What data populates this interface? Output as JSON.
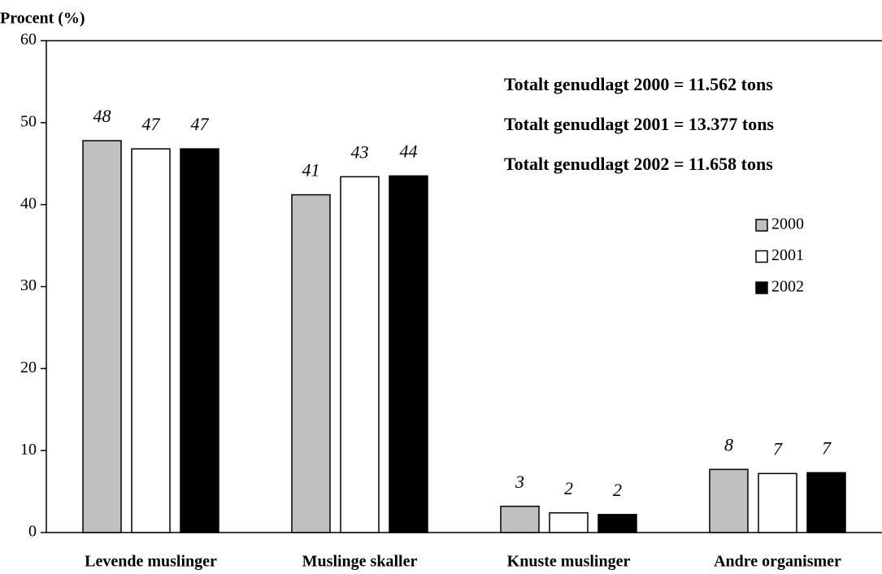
{
  "chart_data": {
    "type": "bar",
    "y_axis_label": "Procent (%)",
    "categories": [
      "Levende muslinger",
      "Muslinge skaller",
      "Knuste muslinger",
      "Andre organismer"
    ],
    "series": [
      {
        "name": "2000",
        "color": "#c0c0c0",
        "values": [
          47.8,
          41.2,
          3.2,
          7.7
        ],
        "value_labels": [
          "48",
          "41",
          "3",
          "8"
        ]
      },
      {
        "name": "2001",
        "color": "#ffffff",
        "values": [
          46.8,
          43.4,
          2.4,
          7.2
        ],
        "value_labels": [
          "47",
          "43",
          "2",
          "7"
        ]
      },
      {
        "name": "2002",
        "color": "#000000",
        "values": [
          46.8,
          43.5,
          2.2,
          7.3
        ],
        "value_labels": [
          "47",
          "44",
          "2",
          "7"
        ]
      }
    ],
    "annotations": [
      "Totalt genudlagt 2000 = 11.562 tons",
      "Totalt genudlagt 2001 = 13.377 tons",
      "Totalt genudlagt 2002 = 11.658 tons"
    ],
    "ylim": [
      0,
      60
    ],
    "yticks": [
      0,
      10,
      20,
      30,
      40,
      50,
      60
    ],
    "grid": false,
    "legend": "right"
  }
}
